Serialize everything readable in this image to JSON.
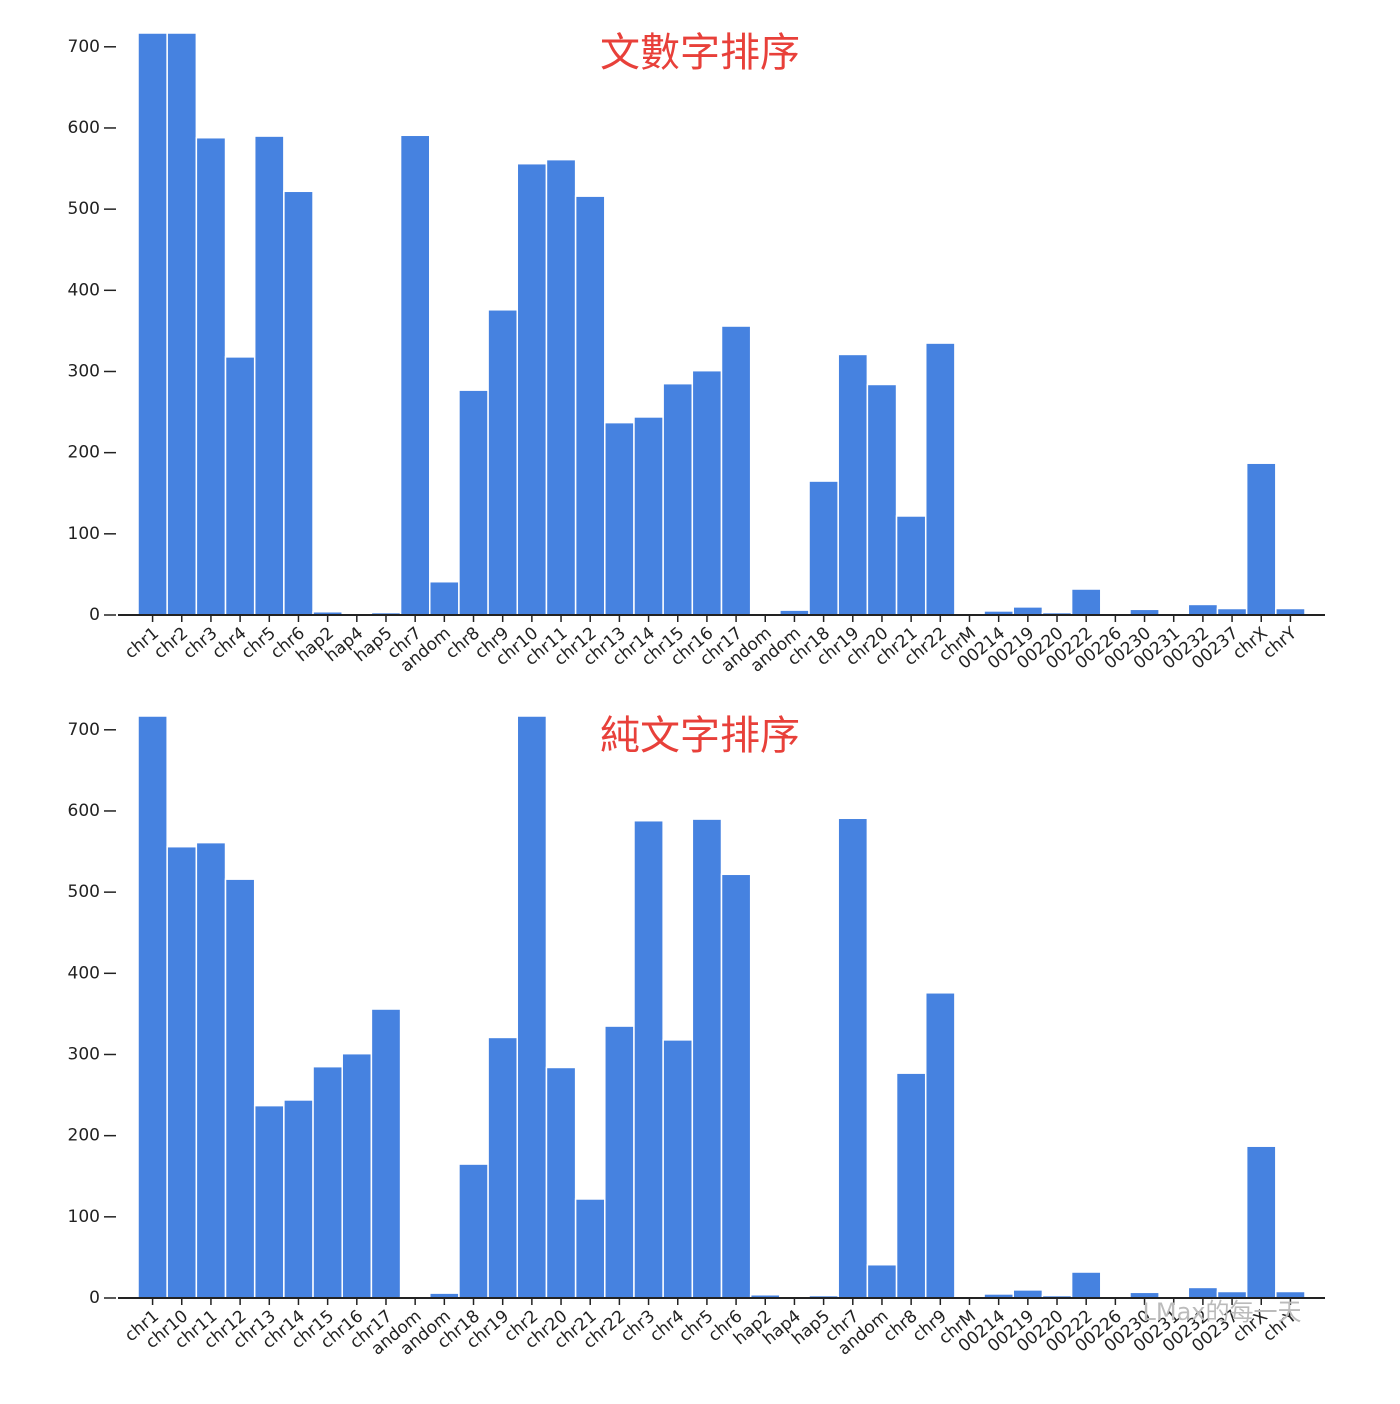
{
  "chart_data": [
    {
      "type": "bar",
      "title": "文數字排序",
      "color": "#4682e0",
      "categories": [
        "chr1",
        "chr2",
        "chr3",
        "chr4",
        "chr5",
        "chr6",
        "hap2",
        "hap4",
        "hap5",
        "chr7",
        "andom",
        "chr8",
        "chr9",
        "chr10",
        "chr11",
        "chr12",
        "chr13",
        "chr14",
        "chr15",
        "chr16",
        "chr17",
        "andom",
        "andom",
        "chr18",
        "chr19",
        "chr20",
        "chr21",
        "chr22",
        "chrM",
        "00214",
        "00219",
        "00220",
        "00222",
        "00226",
        "00230",
        "00231",
        "00232",
        "00237",
        "chrX",
        "chrY"
      ],
      "values": [
        717,
        717,
        588,
        318,
        590,
        522,
        4,
        1,
        3,
        591,
        41,
        277,
        376,
        556,
        561,
        516,
        237,
        244,
        285,
        301,
        356,
        1,
        6,
        165,
        321,
        284,
        122,
        335,
        1,
        5,
        10,
        3,
        32,
        1,
        7,
        1,
        13,
        8,
        187,
        8
      ],
      "ylim": [
        0,
        717
      ],
      "yticks": [
        0,
        100,
        200,
        300,
        400,
        500,
        600,
        700
      ]
    },
    {
      "type": "bar",
      "title": "純文字排序",
      "color": "#4682e0",
      "categories": [
        "chr1",
        "chr10",
        "chr11",
        "chr12",
        "chr13",
        "chr14",
        "chr15",
        "chr16",
        "chr17",
        "andom",
        "andom",
        "chr18",
        "chr19",
        "chr2",
        "chr20",
        "chr21",
        "chr22",
        "chr3",
        "chr4",
        "chr5",
        "chr6",
        "hap2",
        "hap4",
        "hap5",
        "chr7",
        "andom",
        "chr8",
        "chr9",
        "chrM",
        "00214",
        "00219",
        "00220",
        "00222",
        "00226",
        "00230",
        "00231",
        "00232",
        "00237",
        "chrX",
        "chrY"
      ],
      "values": [
        717,
        556,
        561,
        516,
        237,
        244,
        285,
        301,
        356,
        1,
        6,
        165,
        321,
        717,
        284,
        122,
        335,
        588,
        318,
        590,
        522,
        4,
        1,
        3,
        591,
        41,
        277,
        376,
        1,
        5,
        10,
        3,
        32,
        1,
        7,
        1,
        13,
        8,
        187,
        8
      ],
      "ylim": [
        0,
        717
      ],
      "yticks": [
        0,
        100,
        200,
        300,
        400,
        500,
        600,
        700
      ]
    }
  ],
  "watermark": "LMax的每一天"
}
